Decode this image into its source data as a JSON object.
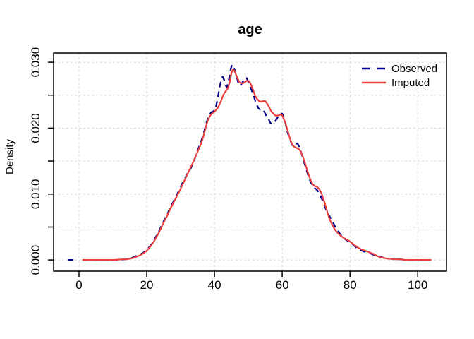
{
  "chart_data": {
    "type": "line",
    "title": "age",
    "xlabel": "",
    "ylabel": "Density",
    "grid": true,
    "grid_color": "#d6d6d6",
    "legend_position": "top-right",
    "xlim": [
      -7.5,
      108.5
    ],
    "ylim": [
      -0.0017,
      0.0314
    ],
    "x_ticks": [
      {
        "v": 0,
        "label": "0"
      },
      {
        "v": 20,
        "label": "20"
      },
      {
        "v": 40,
        "label": "40"
      },
      {
        "v": 60,
        "label": "60"
      },
      {
        "v": 80,
        "label": "80"
      },
      {
        "v": 100,
        "label": "100"
      }
    ],
    "y_ticks": [
      {
        "v": 0.0,
        "label": "0.000"
      },
      {
        "v": 0.005,
        "label": ""
      },
      {
        "v": 0.01,
        "label": "0.010"
      },
      {
        "v": 0.015,
        "label": ""
      },
      {
        "v": 0.02,
        "label": "0.020"
      },
      {
        "v": 0.025,
        "label": ""
      },
      {
        "v": 0.03,
        "label": "0.030"
      }
    ],
    "series": [
      {
        "name": "Observed",
        "color": "#00008b",
        "line_style": "dashed",
        "segments": [
          [
            [
              -3.3,
              0
            ],
            [
              -0.6,
              0
            ]
          ],
          [
            [
              1,
              0
            ],
            [
              5,
              0
            ],
            [
              9,
              0
            ],
            [
              12,
              0
            ],
            [
              13.5,
              0.0001
            ],
            [
              15,
              0.0002
            ],
            [
              16,
              0.0004
            ],
            [
              17,
              0.0006
            ],
            [
              18,
              0.0008
            ],
            [
              19,
              0.0011
            ],
            [
              20,
              0.0015
            ],
            [
              21,
              0.0021
            ],
            [
              22,
              0.0029
            ],
            [
              23,
              0.0038
            ],
            [
              24,
              0.0048
            ],
            [
              25,
              0.0059
            ],
            [
              26,
              0.0069
            ],
            [
              27,
              0.008
            ],
            [
              28,
              0.009
            ],
            [
              29,
              0.01
            ],
            [
              30,
              0.0111
            ],
            [
              31,
              0.0121
            ],
            [
              32,
              0.0131
            ],
            [
              33,
              0.0139
            ],
            [
              34,
              0.0151
            ],
            [
              35,
              0.0166
            ],
            [
              36,
              0.0179
            ],
            [
              36.5,
              0.0187
            ],
            [
              37,
              0.0196
            ],
            [
              37.5,
              0.0206
            ],
            [
              38,
              0.0214
            ],
            [
              38.5,
              0.022
            ],
            [
              39,
              0.0224
            ],
            [
              39.5,
              0.0225
            ],
            [
              40,
              0.0227
            ],
            [
              40.5,
              0.0234
            ],
            [
              41,
              0.0247
            ],
            [
              41.5,
              0.0262
            ],
            [
              42,
              0.0273
            ],
            [
              42.4,
              0.0278
            ],
            [
              42.8,
              0.0274
            ],
            [
              43.2,
              0.0266
            ],
            [
              43.6,
              0.0262
            ],
            [
              44,
              0.0267
            ],
            [
              44.4,
              0.0278
            ],
            [
              44.8,
              0.029
            ],
            [
              45.2,
              0.0296
            ],
            [
              45.6,
              0.0294
            ],
            [
              46,
              0.0288
            ],
            [
              46.5,
              0.0279
            ],
            [
              47,
              0.0269
            ],
            [
              47.5,
              0.0264
            ],
            [
              48,
              0.0267
            ],
            [
              48.5,
              0.0272
            ],
            [
              49,
              0.0276
            ],
            [
              49.5,
              0.0276
            ],
            [
              50,
              0.027
            ],
            [
              50.5,
              0.0263
            ],
            [
              51,
              0.0257
            ],
            [
              51.5,
              0.025
            ],
            [
              52,
              0.0242
            ],
            [
              52.5,
              0.0235
            ],
            [
              53,
              0.023
            ],
            [
              53.5,
              0.0228
            ],
            [
              54,
              0.0229
            ],
            [
              54.5,
              0.0227
            ],
            [
              55,
              0.0222
            ],
            [
              55.5,
              0.0217
            ],
            [
              56,
              0.0213
            ],
            [
              56.5,
              0.0208
            ],
            [
              57,
              0.0206
            ],
            [
              57.5,
              0.0208
            ],
            [
              58,
              0.0211
            ],
            [
              58.5,
              0.0215
            ],
            [
              59,
              0.0219
            ],
            [
              59.5,
              0.0222
            ],
            [
              60,
              0.0222
            ],
            [
              60.5,
              0.0216
            ],
            [
              61,
              0.0206
            ],
            [
              61.5,
              0.0195
            ],
            [
              62,
              0.0187
            ],
            [
              62.5,
              0.018
            ],
            [
              63,
              0.0174
            ],
            [
              63.5,
              0.0173
            ],
            [
              64,
              0.0175
            ],
            [
              64.5,
              0.0177
            ],
            [
              65,
              0.0172
            ],
            [
              65.5,
              0.0165
            ],
            [
              66,
              0.0156
            ],
            [
              66.6,
              0.0146
            ],
            [
              67.2,
              0.0136
            ],
            [
              67.8,
              0.0126
            ],
            [
              68.4,
              0.0118
            ],
            [
              69,
              0.0113
            ],
            [
              69.6,
              0.0109
            ],
            [
              70.3,
              0.0106
            ],
            [
              71,
              0.0101
            ],
            [
              71.6,
              0.0094
            ],
            [
              72.2,
              0.0086
            ],
            [
              72.8,
              0.0078
            ],
            [
              73.4,
              0.0071
            ],
            [
              74,
              0.0066
            ],
            [
              74.6,
              0.0061
            ],
            [
              75.2,
              0.0055
            ],
            [
              76,
              0.0047
            ],
            [
              77,
              0.004
            ],
            [
              78,
              0.0034
            ],
            [
              79,
              0.003
            ],
            [
              80,
              0.0027
            ],
            [
              81,
              0.0023
            ],
            [
              82,
              0.0018
            ],
            [
              83,
              0.0015
            ],
            [
              84,
              0.0013
            ],
            [
              85,
              0.0012
            ],
            [
              86,
              0.001
            ],
            [
              87,
              0.0008
            ],
            [
              88,
              0.0007
            ],
            [
              89,
              0.0005
            ],
            [
              90,
              0.0003
            ],
            [
              91,
              0.0002
            ],
            [
              92,
              0.0002
            ],
            [
              93,
              0.0001
            ],
            [
              94,
              0.0001
            ],
            [
              95,
              0.0001
            ],
            [
              96.5,
              0
            ],
            [
              99,
              0
            ],
            [
              103,
              0
            ]
          ]
        ]
      },
      {
        "name": "Imputed",
        "color": "#e8403e",
        "line_style": "solid",
        "segments": [
          [
            [
              1,
              0
            ],
            [
              4,
              0
            ],
            [
              7,
              0
            ],
            [
              10,
              0
            ],
            [
              13,
              0.0001
            ],
            [
              14,
              0.0001
            ],
            [
              15,
              0.0002
            ],
            [
              16,
              0.0003
            ],
            [
              17,
              0.0005
            ],
            [
              18,
              0.0007
            ],
            [
              19,
              0.001
            ],
            [
              20,
              0.0014
            ],
            [
              21,
              0.002
            ],
            [
              22,
              0.0027
            ],
            [
              23,
              0.0036
            ],
            [
              24,
              0.0046
            ],
            [
              25,
              0.0057
            ],
            [
              26,
              0.0067
            ],
            [
              27,
              0.0078
            ],
            [
              28,
              0.0088
            ],
            [
              29,
              0.0098
            ],
            [
              30,
              0.0108
            ],
            [
              31,
              0.0119
            ],
            [
              32,
              0.013
            ],
            [
              33,
              0.0141
            ],
            [
              34,
              0.0152
            ],
            [
              35,
              0.0164
            ],
            [
              36,
              0.0176
            ],
            [
              36.5,
              0.0184
            ],
            [
              37,
              0.0193
            ],
            [
              37.5,
              0.0203
            ],
            [
              38,
              0.0211
            ],
            [
              38.5,
              0.0217
            ],
            [
              39,
              0.0221
            ],
            [
              39.5,
              0.0223
            ],
            [
              40,
              0.0225
            ],
            [
              40.5,
              0.0228
            ],
            [
              41,
              0.0231
            ],
            [
              41.5,
              0.0236
            ],
            [
              42,
              0.0242
            ],
            [
              42.5,
              0.0249
            ],
            [
              43,
              0.0254
            ],
            [
              43.5,
              0.0257
            ],
            [
              44,
              0.0261
            ],
            [
              44.5,
              0.027
            ],
            [
              45,
              0.0283
            ],
            [
              45.4,
              0.0289
            ],
            [
              45.8,
              0.0288
            ],
            [
              46.2,
              0.0283
            ],
            [
              46.7,
              0.0277
            ],
            [
              47.2,
              0.0271
            ],
            [
              47.8,
              0.0268
            ],
            [
              48.4,
              0.0268
            ],
            [
              49,
              0.027
            ],
            [
              49.6,
              0.0272
            ],
            [
              50.2,
              0.0271
            ],
            [
              50.8,
              0.0266
            ],
            [
              51.4,
              0.0258
            ],
            [
              52,
              0.0249
            ],
            [
              52.6,
              0.0244
            ],
            [
              53.2,
              0.0241
            ],
            [
              53.8,
              0.024
            ],
            [
              54.4,
              0.0241
            ],
            [
              55,
              0.0241
            ],
            [
              55.6,
              0.0237
            ],
            [
              56.2,
              0.0231
            ],
            [
              56.8,
              0.0225
            ],
            [
              57.4,
              0.0222
            ],
            [
              58,
              0.0219
            ],
            [
              58.6,
              0.0219
            ],
            [
              59.2,
              0.022
            ],
            [
              59.8,
              0.0221
            ],
            [
              60.4,
              0.0215
            ],
            [
              61,
              0.0207
            ],
            [
              61.5,
              0.0198
            ],
            [
              62,
              0.0189
            ],
            [
              62.5,
              0.0181
            ],
            [
              63,
              0.0175
            ],
            [
              63.5,
              0.0172
            ],
            [
              64.2,
              0.017
            ],
            [
              65,
              0.0168
            ],
            [
              65.5,
              0.0164
            ],
            [
              66,
              0.0158
            ],
            [
              66.6,
              0.0149
            ],
            [
              67.2,
              0.0139
            ],
            [
              67.8,
              0.0129
            ],
            [
              68.4,
              0.0121
            ],
            [
              69,
              0.0115
            ],
            [
              69.6,
              0.0112
            ],
            [
              70.3,
              0.0111
            ],
            [
              71,
              0.0107
            ],
            [
              71.6,
              0.0101
            ],
            [
              72.2,
              0.0092
            ],
            [
              72.8,
              0.0082
            ],
            [
              73.4,
              0.0071
            ],
            [
              74,
              0.0062
            ],
            [
              74.6,
              0.0055
            ],
            [
              75.2,
              0.0049
            ],
            [
              76,
              0.0043
            ],
            [
              77,
              0.0038
            ],
            [
              78,
              0.0034
            ],
            [
              79,
              0.0031
            ],
            [
              80,
              0.0028
            ],
            [
              81,
              0.0024
            ],
            [
              82,
              0.002
            ],
            [
              83,
              0.0017
            ],
            [
              84,
              0.0015
            ],
            [
              85,
              0.0013
            ],
            [
              86,
              0.0011
            ],
            [
              87,
              0.0009
            ],
            [
              88,
              0.0006
            ],
            [
              89,
              0.0004
            ],
            [
              90,
              0.0003
            ],
            [
              91,
              0.0002
            ],
            [
              92,
              0.0002
            ],
            [
              93,
              0.0001
            ],
            [
              94,
              0.0001
            ],
            [
              95,
              0.0001
            ],
            [
              96,
              0
            ],
            [
              98,
              0
            ],
            [
              101,
              0
            ],
            [
              104,
              0
            ]
          ]
        ]
      }
    ]
  }
}
